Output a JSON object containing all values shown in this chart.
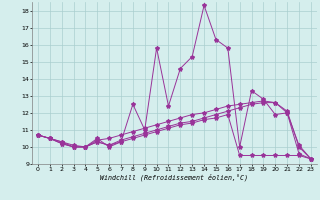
{
  "xlabel": "Windchill (Refroidissement éolien,°C)",
  "x": [
    0,
    1,
    2,
    3,
    4,
    5,
    6,
    7,
    8,
    9,
    10,
    11,
    12,
    13,
    14,
    15,
    16,
    17,
    18,
    19,
    20,
    21,
    22,
    23
  ],
  "line1": [
    10.7,
    10.5,
    10.2,
    10.0,
    10.0,
    10.5,
    10.0,
    10.3,
    12.5,
    11.0,
    15.8,
    12.4,
    14.6,
    15.3,
    18.3,
    16.3,
    15.8,
    10.0,
    13.3,
    12.8,
    11.9,
    12.0,
    10.1,
    9.3
  ],
  "line2": [
    10.7,
    10.5,
    10.2,
    10.0,
    10.0,
    10.4,
    10.5,
    10.7,
    10.9,
    11.1,
    11.3,
    11.5,
    11.7,
    11.9,
    12.0,
    12.2,
    12.4,
    12.5,
    12.6,
    12.7,
    12.6,
    12.0,
    9.6,
    9.3
  ],
  "line3": [
    10.7,
    10.5,
    10.3,
    10.1,
    10.0,
    10.3,
    10.1,
    10.3,
    10.5,
    10.7,
    10.9,
    11.1,
    11.3,
    11.4,
    11.6,
    11.7,
    11.9,
    9.5,
    9.5,
    9.5,
    9.5,
    9.5,
    9.5,
    9.3
  ],
  "line4": [
    10.7,
    10.5,
    10.3,
    10.0,
    10.0,
    10.3,
    10.1,
    10.4,
    10.6,
    10.8,
    11.0,
    11.2,
    11.4,
    11.5,
    11.7,
    11.9,
    12.1,
    12.3,
    12.5,
    12.6,
    12.6,
    12.1,
    10.0,
    9.3
  ],
  "line_color": "#993399",
  "bg_color": "#d5eeed",
  "grid_color": "#aacfcf",
  "ylim": [
    9,
    18.5
  ],
  "yticks": [
    9,
    10,
    11,
    12,
    13,
    14,
    15,
    16,
    17,
    18
  ],
  "xticks": [
    0,
    1,
    2,
    3,
    4,
    5,
    6,
    7,
    8,
    9,
    10,
    11,
    12,
    13,
    14,
    15,
    16,
    17,
    18,
    19,
    20,
    21,
    22,
    23
  ]
}
